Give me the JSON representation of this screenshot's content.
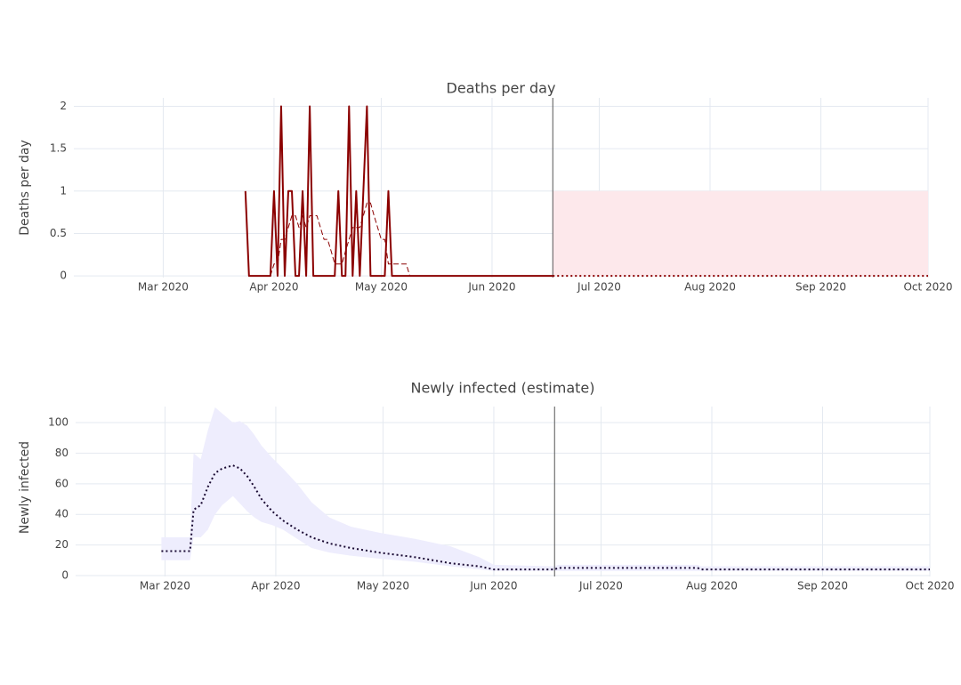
{
  "chart_data": [
    {
      "type": "line",
      "title": "Deaths per day",
      "y_label": "Deaths per day",
      "xlim": [
        "2020-02-05",
        "2020-10-01"
      ],
      "xticks": [
        {
          "value": "2020-03-01",
          "label": "Mar 2020"
        },
        {
          "value": "2020-04-01",
          "label": "Apr 2020"
        },
        {
          "value": "2020-05-01",
          "label": "May 2020"
        },
        {
          "value": "2020-06-01",
          "label": "Jun 2020"
        },
        {
          "value": "2020-07-01",
          "label": "Jul 2020"
        },
        {
          "value": "2020-08-01",
          "label": "Aug 2020"
        },
        {
          "value": "2020-09-01",
          "label": "Sep 2020"
        },
        {
          "value": "2020-10-01",
          "label": "Oct 2020"
        }
      ],
      "ylim": [
        -0.02,
        2.1
      ],
      "yticks": [
        0,
        0.5,
        1,
        1.5,
        2
      ],
      "grid": true,
      "vline": "2020-06-18",
      "band": {
        "x": [
          "2020-06-18",
          "2020-10-01"
        ],
        "lower": [
          0,
          0
        ],
        "upper": [
          1,
          1
        ],
        "color": "#fde8eb"
      },
      "series": [
        {
          "color": "#8b0000",
          "dash": "solid",
          "x": [
            "2020-03-24",
            "2020-03-25",
            "2020-03-26",
            "2020-03-27",
            "2020-03-28",
            "2020-03-29",
            "2020-03-30",
            "2020-03-31",
            "2020-04-01",
            "2020-04-02",
            "2020-04-03",
            "2020-04-04",
            "2020-04-05",
            "2020-04-06",
            "2020-04-07",
            "2020-04-08",
            "2020-04-09",
            "2020-04-10",
            "2020-04-11",
            "2020-04-12",
            "2020-04-13",
            "2020-04-14",
            "2020-04-15",
            "2020-04-16",
            "2020-04-17",
            "2020-04-18",
            "2020-04-19",
            "2020-04-20",
            "2020-04-21",
            "2020-04-22",
            "2020-04-23",
            "2020-04-24",
            "2020-04-25",
            "2020-04-26",
            "2020-04-27",
            "2020-04-28",
            "2020-04-29",
            "2020-04-30",
            "2020-05-01",
            "2020-05-02",
            "2020-05-03",
            "2020-05-04",
            "2020-05-05",
            "2020-05-06",
            "2020-05-07",
            "2020-05-08",
            "2020-05-09",
            "2020-06-18"
          ],
          "values": [
            1,
            0,
            0,
            0,
            0,
            0,
            0,
            0,
            1,
            0,
            2,
            0,
            1,
            1,
            0,
            0,
            1,
            0,
            2,
            0,
            0,
            0,
            0,
            0,
            0,
            0,
            1,
            0,
            0,
            2,
            0,
            1,
            0,
            1,
            2,
            0,
            0,
            0,
            0,
            0,
            1,
            0,
            0,
            0,
            0,
            0,
            0,
            0
          ]
        },
        {
          "color": "#8b0000",
          "dash": "dash",
          "x": [
            "2020-03-31",
            "2020-04-01",
            "2020-04-02",
            "2020-04-03",
            "2020-04-04",
            "2020-04-05",
            "2020-04-06",
            "2020-04-07",
            "2020-04-08",
            "2020-04-09",
            "2020-04-10",
            "2020-04-11",
            "2020-04-12",
            "2020-04-13",
            "2020-04-14",
            "2020-04-15",
            "2020-04-16",
            "2020-04-17",
            "2020-04-18",
            "2020-04-19",
            "2020-04-20",
            "2020-04-21",
            "2020-04-22",
            "2020-04-23",
            "2020-04-24",
            "2020-04-25",
            "2020-04-26",
            "2020-04-27",
            "2020-04-28",
            "2020-04-29",
            "2020-04-30",
            "2020-05-01",
            "2020-05-02",
            "2020-05-03",
            "2020-05-04",
            "2020-05-05",
            "2020-05-06",
            "2020-05-07",
            "2020-05-08",
            "2020-05-09",
            "2020-06-18"
          ],
          "values": [
            0,
            0.14,
            0.14,
            0.43,
            0.43,
            0.57,
            0.71,
            0.71,
            0.57,
            0.71,
            0.57,
            0.71,
            0.71,
            0.71,
            0.57,
            0.43,
            0.43,
            0.29,
            0.14,
            0.14,
            0.14,
            0.29,
            0.43,
            0.57,
            0.57,
            0.57,
            0.71,
            0.86,
            0.86,
            0.71,
            0.57,
            0.43,
            0.43,
            0.14,
            0.14,
            0.14,
            0.14,
            0.14,
            0.14,
            0,
            0
          ]
        },
        {
          "color": "#8b0000",
          "dash": "dot",
          "x": [
            "2020-06-18",
            "2020-10-01"
          ],
          "values": [
            0,
            0
          ]
        }
      ]
    },
    {
      "type": "line",
      "title": "Newly infected (estimate)",
      "y_label": "Newly infected",
      "xlim": [
        "2020-02-05",
        "2020-10-01"
      ],
      "xticks": [
        {
          "value": "2020-03-01",
          "label": "Mar 2020"
        },
        {
          "value": "2020-04-01",
          "label": "Apr 2020"
        },
        {
          "value": "2020-05-01",
          "label": "May 2020"
        },
        {
          "value": "2020-06-01",
          "label": "Jun 2020"
        },
        {
          "value": "2020-07-01",
          "label": "Jul 2020"
        },
        {
          "value": "2020-08-01",
          "label": "Aug 2020"
        },
        {
          "value": "2020-09-01",
          "label": "Sep 2020"
        },
        {
          "value": "2020-10-01",
          "label": "Oct 2020"
        }
      ],
      "ylim": [
        -0.6,
        110.5
      ],
      "yticks": [
        0,
        20,
        40,
        60,
        80,
        100
      ],
      "grid": true,
      "vline": "2020-06-18",
      "band": {
        "x": [
          "2020-02-29",
          "2020-03-08",
          "2020-03-09",
          "2020-03-11",
          "2020-03-13",
          "2020-03-15",
          "2020-03-17",
          "2020-03-20",
          "2020-03-22",
          "2020-03-24",
          "2020-03-26",
          "2020-03-28",
          "2020-03-31",
          "2020-04-03",
          "2020-04-07",
          "2020-04-11",
          "2020-04-16",
          "2020-04-22",
          "2020-04-30",
          "2020-05-10",
          "2020-05-20",
          "2020-05-28",
          "2020-06-01",
          "2020-06-18",
          "2020-06-19",
          "2020-07-28",
          "2020-07-29",
          "2020-10-01"
        ],
        "lower": [
          10,
          10,
          25,
          25,
          30,
          40,
          46,
          52,
          47,
          42,
          38,
          35,
          33,
          30,
          24,
          18,
          15,
          13,
          11,
          9,
          6,
          4,
          3,
          3,
          3,
          3,
          3,
          3
        ],
        "upper": [
          25,
          25,
          80,
          76,
          95,
          110,
          106,
          100,
          101,
          98,
          92,
          85,
          77,
          70,
          60,
          48,
          38,
          32,
          28,
          24,
          19,
          12,
          7,
          6,
          7,
          7,
          6,
          6
        ],
        "color": "#eeedfd"
      },
      "series": [
        {
          "color": "#1a0a33",
          "dash": "dot",
          "x": [
            "2020-02-29",
            "2020-03-08",
            "2020-03-09",
            "2020-03-11",
            "2020-03-13",
            "2020-03-15",
            "2020-03-17",
            "2020-03-20",
            "2020-03-22",
            "2020-03-24",
            "2020-03-26",
            "2020-03-28",
            "2020-03-31",
            "2020-04-03",
            "2020-04-07",
            "2020-04-11",
            "2020-04-16",
            "2020-04-22",
            "2020-04-30",
            "2020-05-10",
            "2020-05-20",
            "2020-05-28",
            "2020-06-01",
            "2020-06-18",
            "2020-06-19",
            "2020-07-28",
            "2020-07-29",
            "2020-10-01"
          ],
          "values": [
            16,
            16,
            43,
            46,
            58,
            67,
            70,
            72,
            70,
            65,
            58,
            50,
            42,
            36,
            30,
            25,
            21,
            18,
            15,
            12,
            8,
            6,
            4,
            4,
            5,
            5,
            4,
            4
          ]
        }
      ]
    }
  ]
}
